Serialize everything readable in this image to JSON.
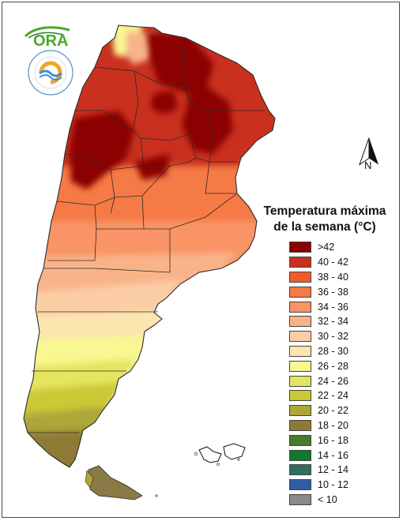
{
  "map": {
    "title": "Temperatura máxima\nde la semana (°C)",
    "north_label": "N",
    "logos": {
      "ora": "ORA",
      "smn_ring": "SERVICIO METEOROLÓGICO NACIONAL · ARGENTINA"
    },
    "legend": [
      {
        "label": ">42",
        "color": "#8b0000"
      },
      {
        "label": "40 - 42",
        "color": "#c9301e"
      },
      {
        "label": "38 - 40",
        "color": "#f25a2c"
      },
      {
        "label": "36 - 38",
        "color": "#f57a45"
      },
      {
        "label": "34 - 36",
        "color": "#f89466"
      },
      {
        "label": "32 - 34",
        "color": "#f9b389"
      },
      {
        "label": "30 - 32",
        "color": "#fbcda5"
      },
      {
        "label": "28 - 30",
        "color": "#fde5ae"
      },
      {
        "label": "26 - 28",
        "color": "#f8f792"
      },
      {
        "label": "24 - 26",
        "color": "#e5e45f"
      },
      {
        "label": "22 - 24",
        "color": "#cbc936"
      },
      {
        "label": "20 - 22",
        "color": "#ada639"
      },
      {
        "label": "18 - 20",
        "color": "#8f7a35"
      },
      {
        "label": "16 - 18",
        "color": "#4b7a2e"
      },
      {
        "label": "14 - 16",
        "color": "#0f7a2a"
      },
      {
        "label": "12 - 14",
        "color": "#2e6e63"
      },
      {
        "label": "10 - 12",
        "color": "#2f5ea1"
      },
      {
        "label": "< 10",
        "color": "#8a8a8a"
      }
    ]
  }
}
